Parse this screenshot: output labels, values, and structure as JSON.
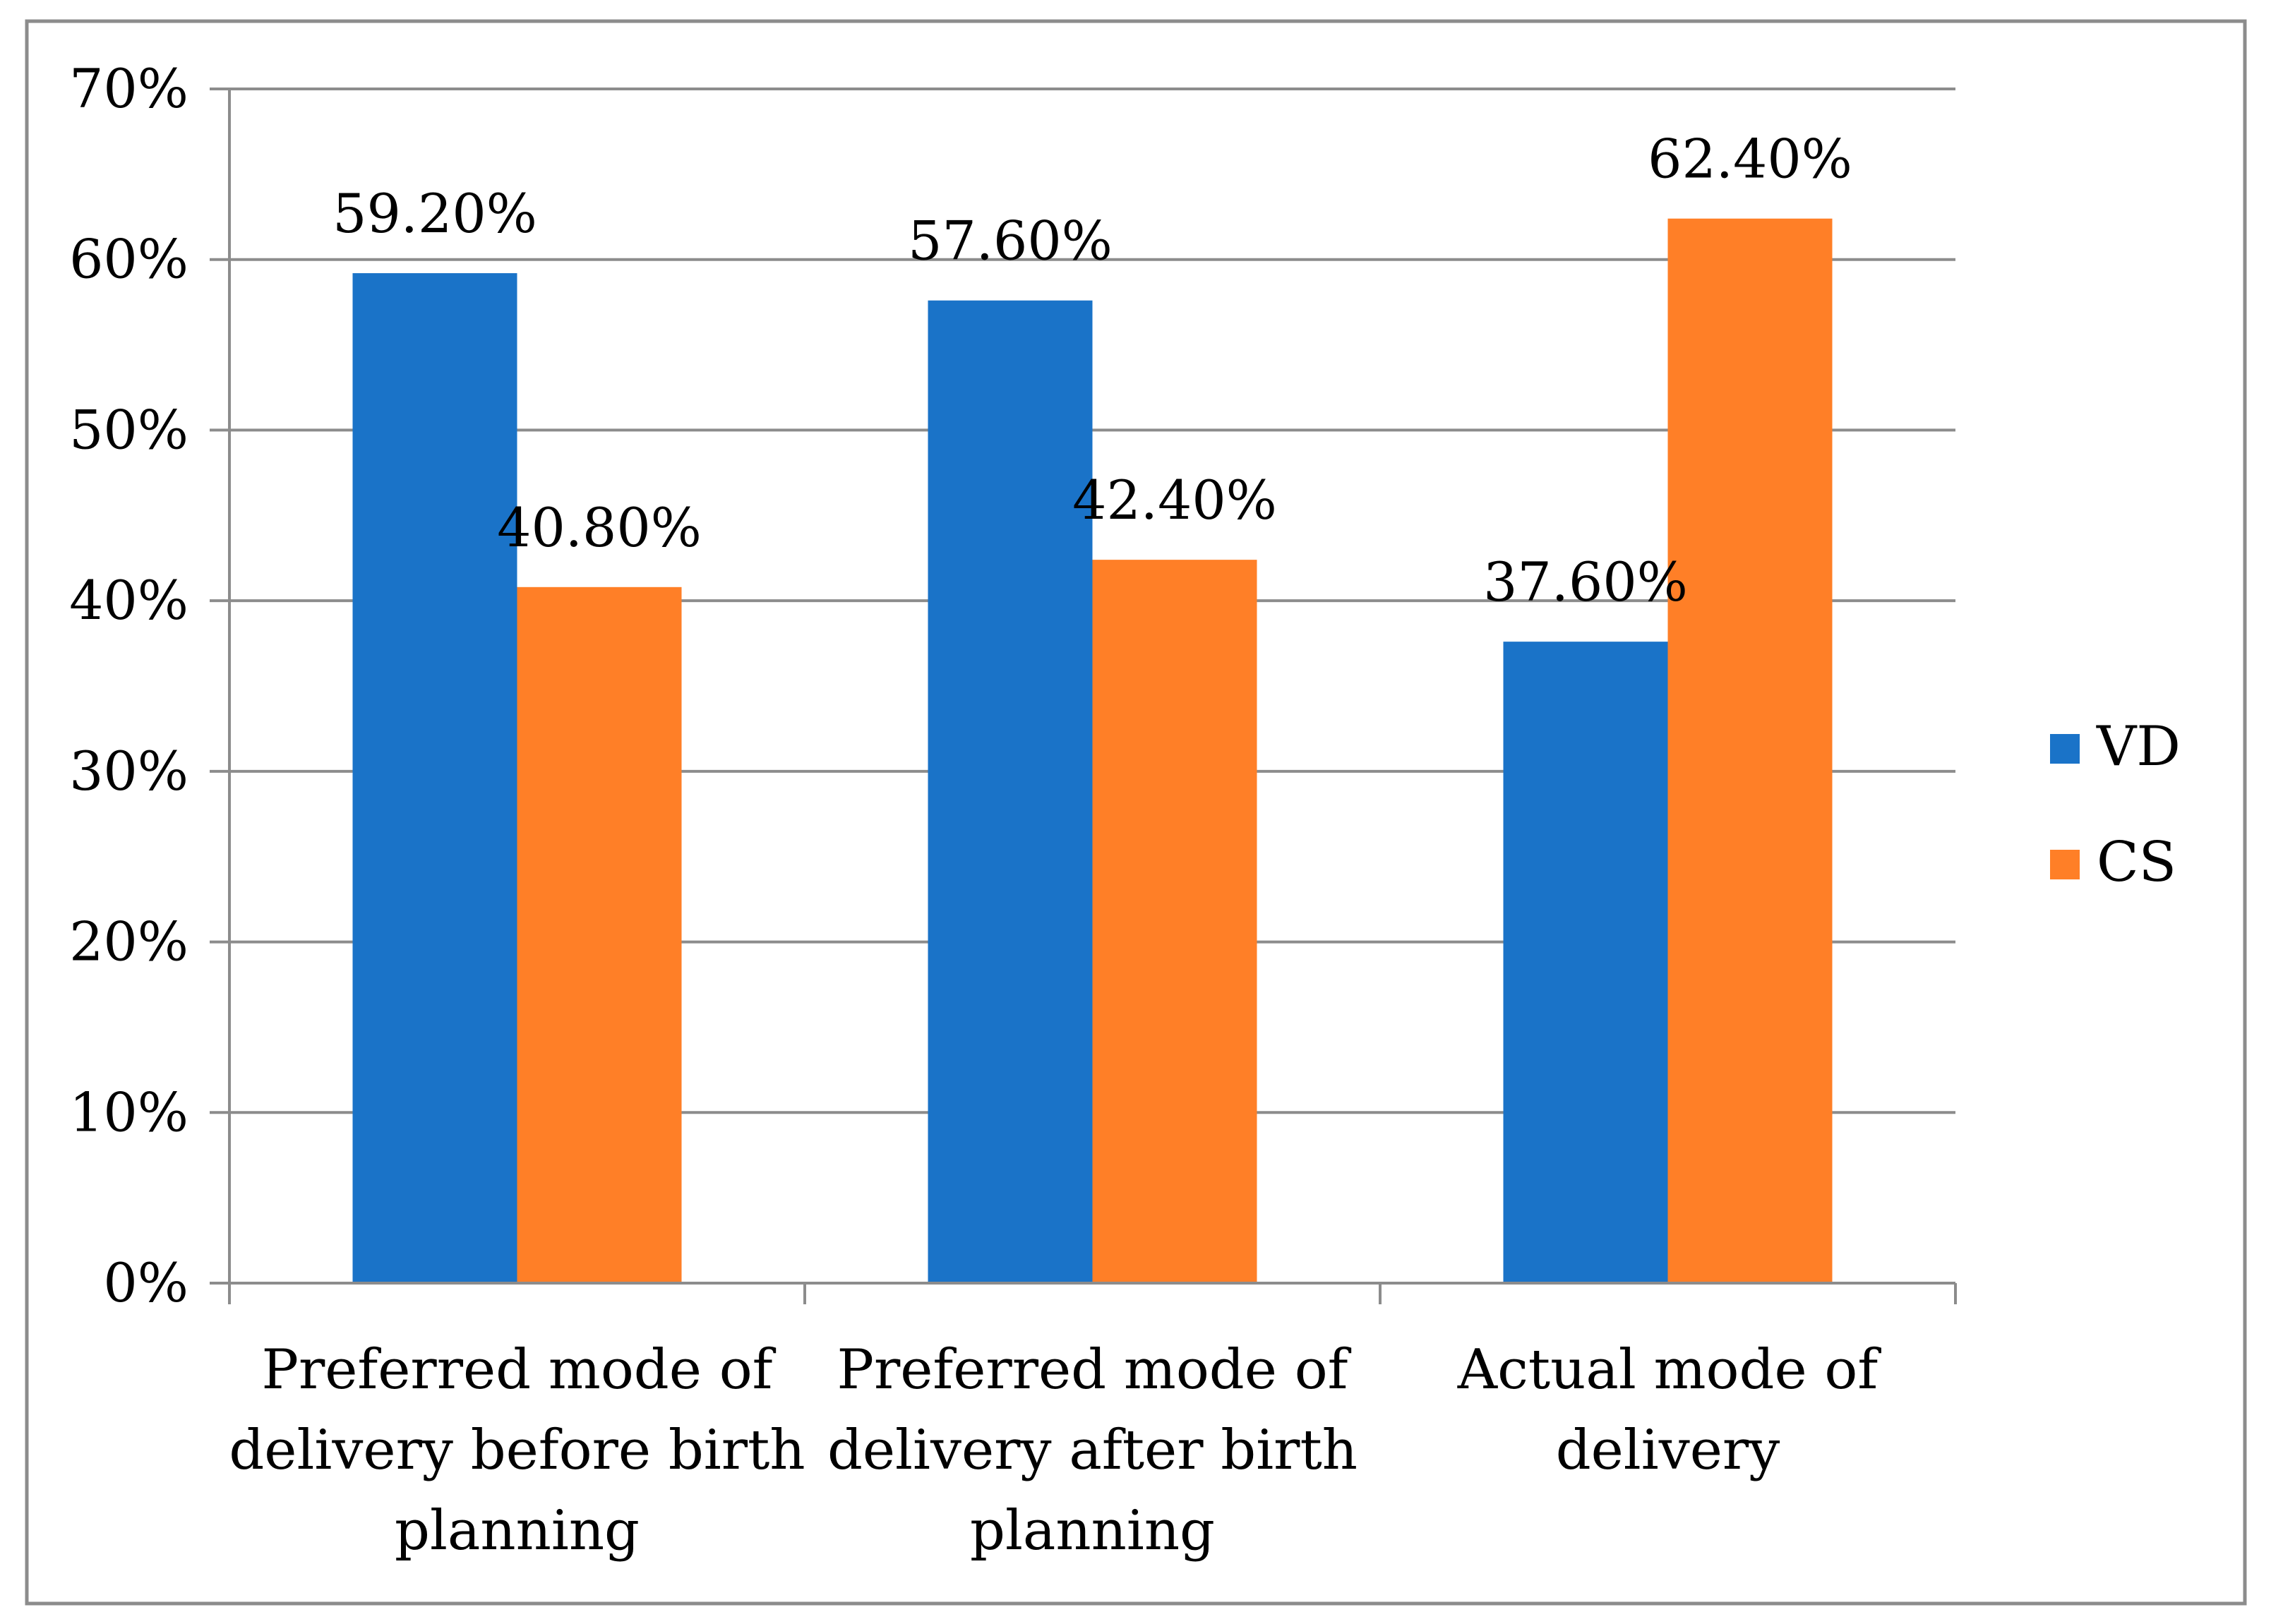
{
  "chart_data": {
    "type": "bar",
    "title": "",
    "xlabel": "",
    "ylabel": "",
    "ylim": [
      0,
      70
    ],
    "y_ticks": [
      0,
      10,
      20,
      30,
      40,
      50,
      60,
      70
    ],
    "y_tick_labels": [
      "0%",
      "10%",
      "20%",
      "30%",
      "40%",
      "50%",
      "60%",
      "70%"
    ],
    "grid": true,
    "legend_position": "right",
    "categories": [
      [
        "Preferred mode of",
        "delivery before birth",
        "planning"
      ],
      [
        "Preferred mode of",
        "delivery after birth",
        "planning"
      ],
      [
        "Actual mode of",
        "delivery"
      ]
    ],
    "series": [
      {
        "name": "VD",
        "color": "#1a73c8",
        "values": [
          59.2,
          57.6,
          37.6
        ],
        "labels": [
          "59.20%",
          "57.60%",
          "37.60%"
        ]
      },
      {
        "name": "CS",
        "color": "#ff7f27",
        "values": [
          40.8,
          42.4,
          62.4
        ],
        "labels": [
          "40.80%",
          "42.40%",
          "62.40%"
        ]
      }
    ]
  }
}
